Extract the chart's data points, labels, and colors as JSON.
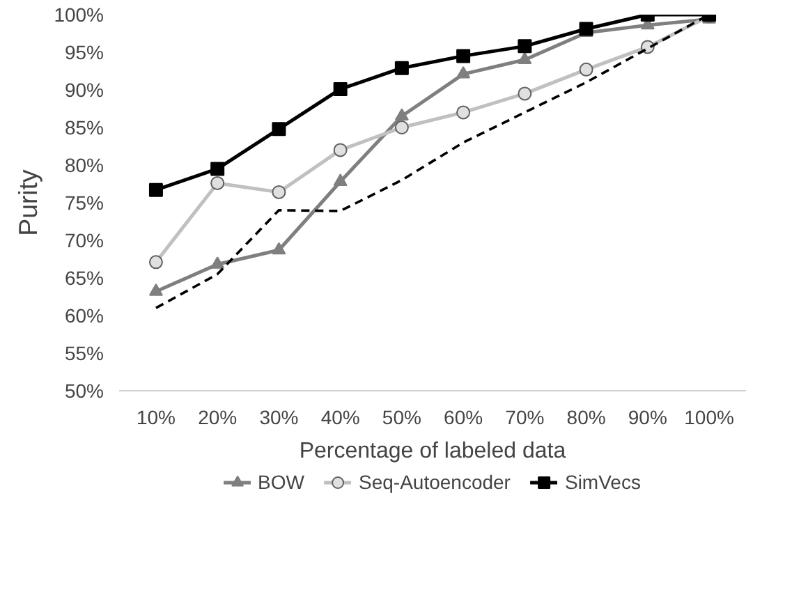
{
  "chart_data": {
    "type": "line",
    "xlabel": "Percentage of labeled data",
    "ylabel": "Purity",
    "categories": [
      "10%",
      "20%",
      "30%",
      "40%",
      "50%",
      "60%",
      "70%",
      "80%",
      "90%",
      "100%"
    ],
    "ylim": [
      50,
      100
    ],
    "yticks": [
      {
        "value": 50,
        "label": "50%"
      },
      {
        "value": 55,
        "label": "55%"
      },
      {
        "value": 60,
        "label": "60%"
      },
      {
        "value": 65,
        "label": "65%"
      },
      {
        "value": 70,
        "label": "70%"
      },
      {
        "value": 75,
        "label": "75%"
      },
      {
        "value": 80,
        "label": "80%"
      },
      {
        "value": 85,
        "label": "85%"
      },
      {
        "value": 90,
        "label": "90%"
      },
      {
        "value": 95,
        "label": "95%"
      },
      {
        "value": 100,
        "label": "100%"
      }
    ],
    "legend": "bottom",
    "series": [
      {
        "name": "BOW",
        "color": "#7f7f7f",
        "marker": "triangle",
        "line_style": "solid",
        "values": [
          63.2,
          66.8,
          68.7,
          77.8,
          86.5,
          92.1,
          94.0,
          97.6,
          98.6,
          99.4
        ]
      },
      {
        "name": "Seq-Autoencoder",
        "color": "#c0c0c0",
        "marker": "circle",
        "line_style": "solid",
        "values": [
          67.1,
          77.6,
          76.4,
          82.0,
          85.0,
          87.0,
          89.5,
          92.7,
          95.7,
          99.8
        ]
      },
      {
        "color": "#000000",
        "marker": "none",
        "line_style": "dashed",
        "values": [
          61.0,
          65.5,
          74.0,
          73.9,
          78.0,
          83.0,
          87.0,
          91.0,
          95.5,
          100
        ]
      },
      {
        "name": "SimVecs",
        "color": "#000000",
        "marker": "square",
        "line_style": "solid",
        "values": [
          76.7,
          79.5,
          84.8,
          90.1,
          92.9,
          94.5,
          95.8,
          98.1,
          100,
          100
        ]
      }
    ]
  }
}
